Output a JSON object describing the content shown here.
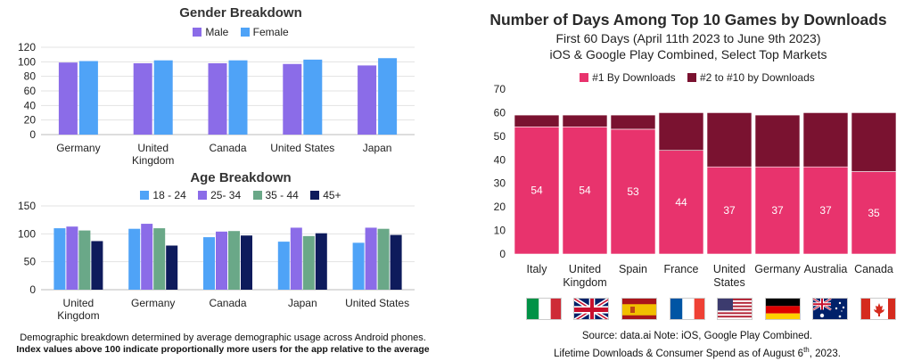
{
  "gender_chart": {
    "title": "Gender Breakdown",
    "colors": {
      "Male": "#8B6CE8",
      "Female": "#4FA3F7"
    }
  },
  "age_chart": {
    "title": "Age Breakdown",
    "colors": {
      "18 - 24": "#4FA3F7",
      "25- 34": "#8B6CE8",
      "35 - 44": "#6AA888",
      "45+": "#0E1B5C"
    }
  },
  "days_chart": {
    "title": "Number of Days Among Top 10 Games by Downloads",
    "subtitle1": "First 60 Days (April 11th 2023 to June 9th 2023)",
    "subtitle2": "iOS & Google Play Combined, Select Top Markets",
    "colors": {
      "#1 By Downloads": "#E8336D",
      "#2 to #10 by Downloads": "#7A1230"
    }
  },
  "left_note": {
    "line1": "Demographic breakdown determined by average demographic usage across Android phones.",
    "line2": "Index values above 100 indicate proportionally more users for the app relative to the average"
  },
  "right_note": {
    "line1": "Source: data.ai Note: iOS, Google Play Combined.",
    "line2_main": "Lifetime Downloads & Consumer Spend as of August 6",
    "line2_sup": "th",
    "line2_end": ", 2023."
  },
  "flags": [
    "italy-flag",
    "uk-flag",
    "spain-flag",
    "france-flag",
    "usa-flag",
    "germany-flag",
    "australia-flag",
    "canada-flag"
  ],
  "chart_data": [
    {
      "type": "bar",
      "title": "Gender Breakdown",
      "categories": [
        "Germany",
        "United Kingdom",
        "Canada",
        "United States",
        "Japan"
      ],
      "category_lines": [
        [
          "Germany"
        ],
        [
          "United",
          "Kingdom"
        ],
        [
          "Canada"
        ],
        [
          "United States"
        ],
        [
          "Japan"
        ]
      ],
      "series": [
        {
          "name": "Male",
          "values": [
            99,
            98,
            98,
            97,
            95
          ]
        },
        {
          "name": "Female",
          "values": [
            101,
            102,
            102,
            103,
            105
          ]
        }
      ],
      "ylim": [
        0,
        120
      ],
      "yticks": [
        0,
        20,
        40,
        60,
        80,
        100,
        120
      ],
      "legend": "top"
    },
    {
      "type": "bar",
      "title": "Age Breakdown",
      "categories": [
        "United Kingdom",
        "Germany",
        "Canada",
        "Japan",
        "United States"
      ],
      "category_lines": [
        [
          "United",
          "Kingdom"
        ],
        [
          "Germany"
        ],
        [
          "Canada"
        ],
        [
          "Japan"
        ],
        [
          "United States"
        ]
      ],
      "series": [
        {
          "name": "18 - 24",
          "values": [
            110,
            109,
            94,
            86,
            84
          ]
        },
        {
          "name": "25- 34",
          "values": [
            113,
            118,
            104,
            111,
            111
          ]
        },
        {
          "name": "35 - 44",
          "values": [
            106,
            110,
            105,
            96,
            109
          ]
        },
        {
          "name": "45+",
          "values": [
            87,
            79,
            97,
            101,
            98
          ]
        }
      ],
      "ylim": [
        0,
        150
      ],
      "yticks": [
        0,
        50,
        100,
        150
      ],
      "legend": "top"
    },
    {
      "type": "bar",
      "stacked": true,
      "title": "Number of Days Among Top 10 Games by Downloads",
      "subtitle": "First 60 Days (April 11th 2023 to June 9th 2023) iOS & Google Play Combined, Select Top Markets",
      "categories": [
        "Italy",
        "United Kingdom",
        "Spain",
        "France",
        "United States",
        "Germany",
        "Australia",
        "Canada"
      ],
      "category_lines": [
        [
          "Italy"
        ],
        [
          "United",
          "Kingdom"
        ],
        [
          "Spain"
        ],
        [
          "France"
        ],
        [
          "United",
          "States"
        ],
        [
          "Germany"
        ],
        [
          "Australia"
        ],
        [
          "Canada"
        ]
      ],
      "series": [
        {
          "name": "#1 By Downloads",
          "values": [
            54,
            54,
            53,
            44,
            37,
            37,
            37,
            35
          ]
        },
        {
          "name": "#2 to #10 by Downloads",
          "values": [
            5,
            5,
            6,
            16,
            23,
            22,
            23,
            25
          ]
        }
      ],
      "ylim": [
        0,
        70
      ],
      "yticks": [
        0,
        10,
        20,
        30,
        40,
        50,
        60,
        70
      ],
      "legend": "top"
    }
  ]
}
